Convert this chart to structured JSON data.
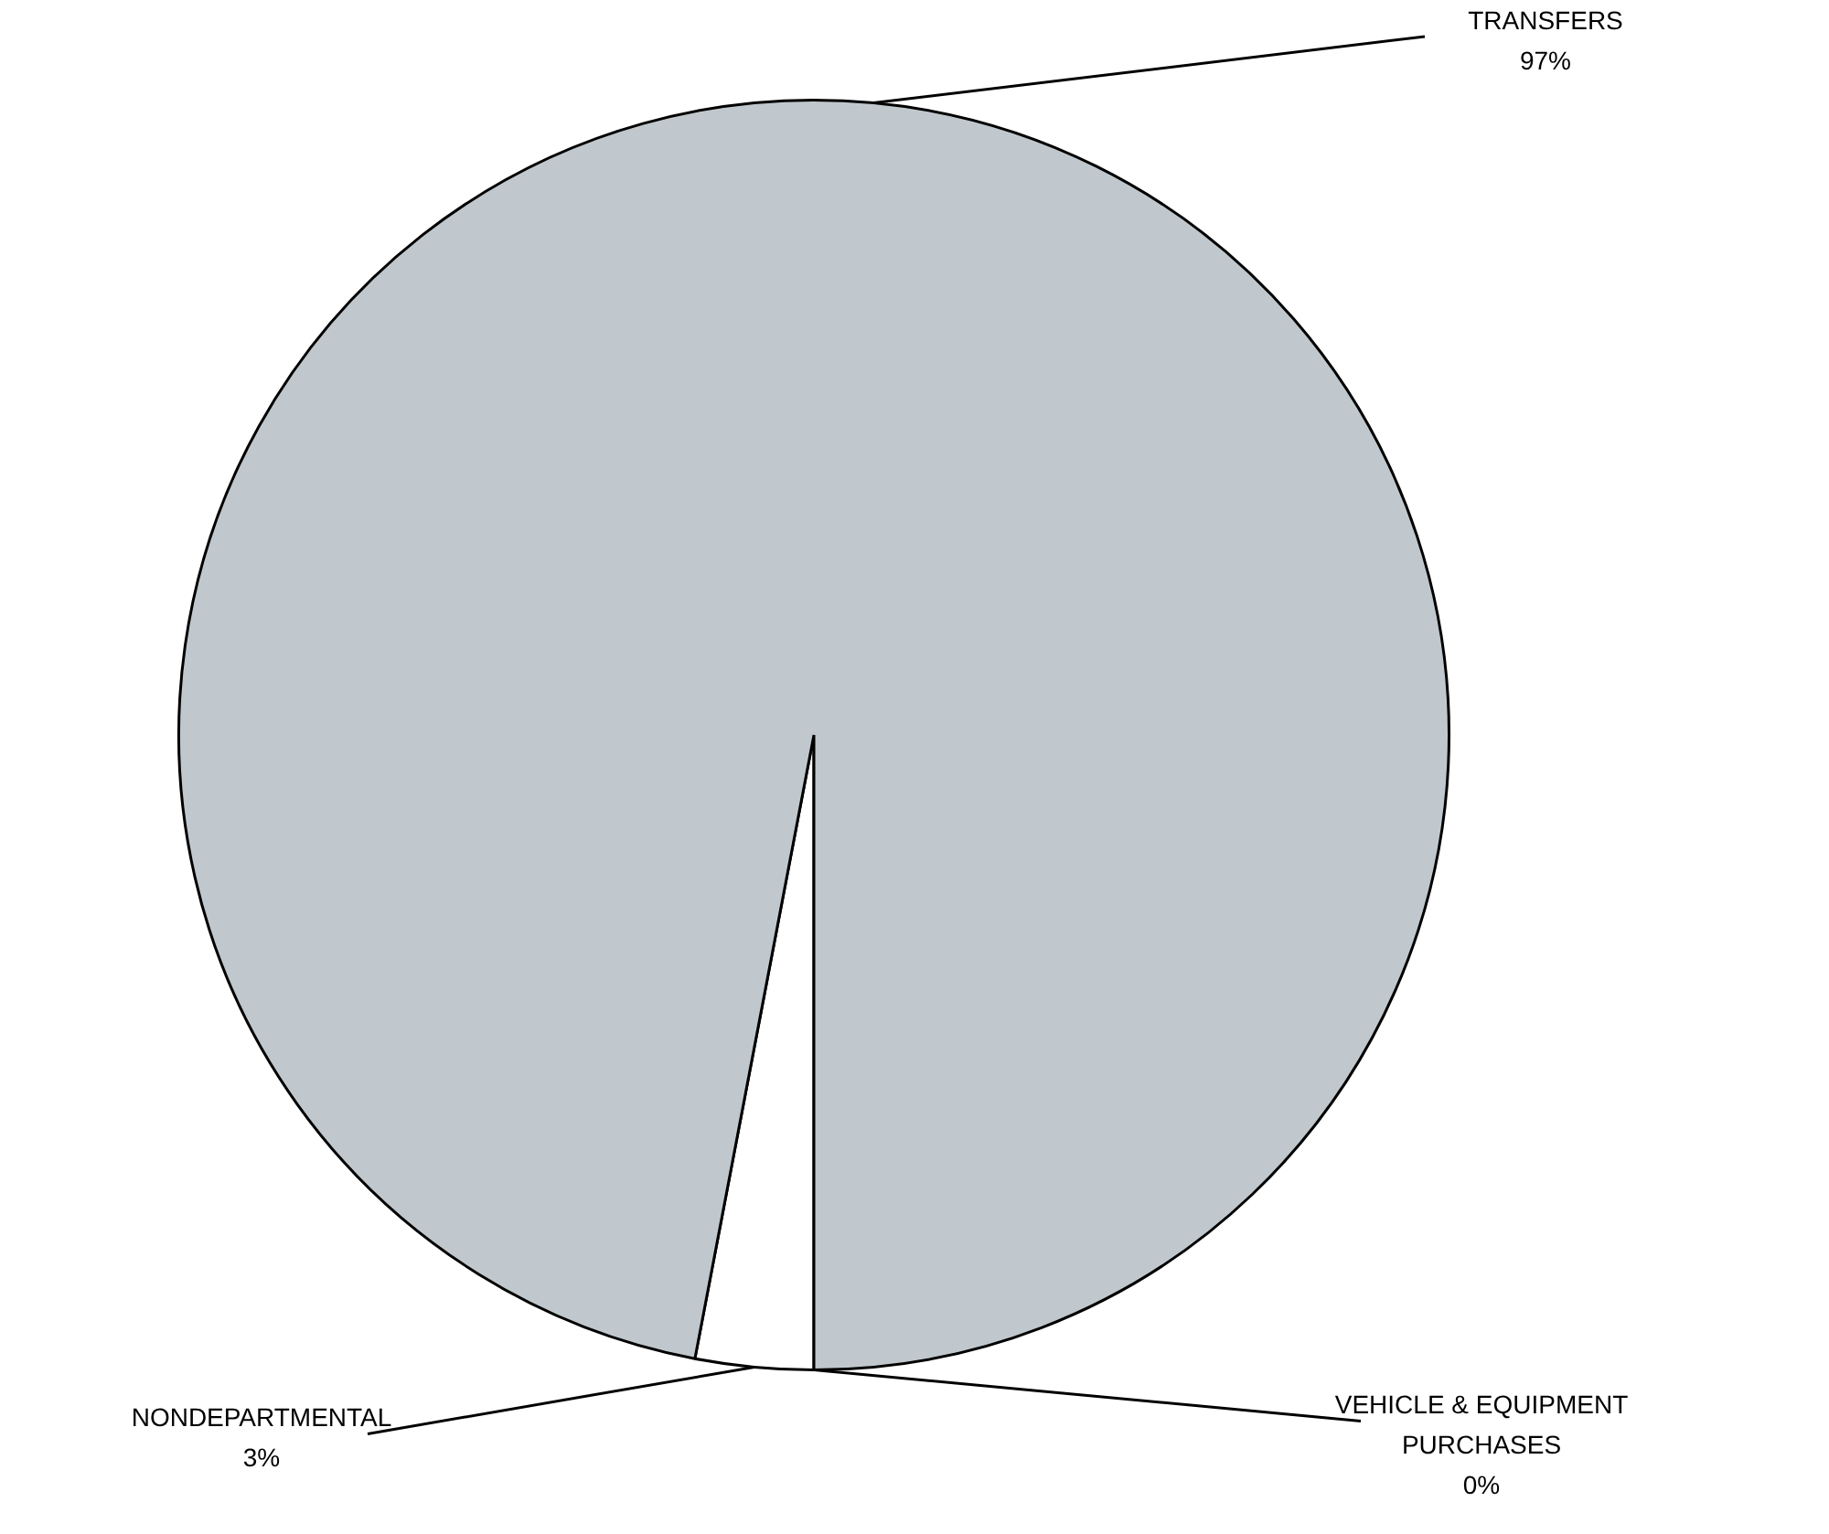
{
  "chart_data": {
    "type": "pie",
    "categories": [
      "NONDEPARTMENTAL",
      "TRANSFERS",
      "VEHICLE & EQUIPMENT PURCHASES"
    ],
    "values": [
      3,
      97,
      0
    ],
    "colors": [
      "#ffffff",
      "#c0c8cd",
      "#ffffff"
    ],
    "value_labels": [
      "3%",
      "97%",
      "0%"
    ],
    "legend": false
  }
}
